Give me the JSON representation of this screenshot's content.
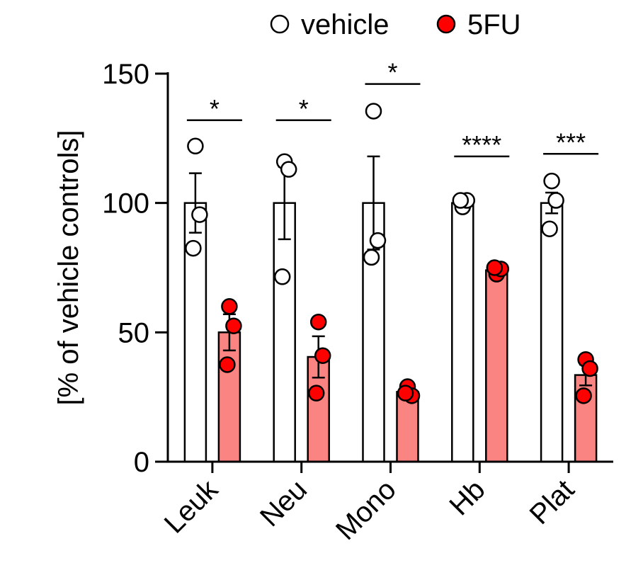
{
  "chart_data": {
    "type": "bar",
    "title": "",
    "xlabel": "",
    "ylabel": "[% of vehicle controls]",
    "ylim": [
      0,
      150
    ],
    "yticks": [
      "0",
      "50",
      "100",
      "150"
    ],
    "categories": [
      "Leuk",
      "Neu",
      "Mono",
      "Hb",
      "Plat"
    ],
    "legend_position": "top",
    "series": [
      {
        "name": "vehicle",
        "color": "#ffffff",
        "marker_fill": "#ffffff",
        "values": [
          100,
          100,
          100,
          100,
          100
        ],
        "sem": [
          11.5,
          14,
          18,
          1,
          4
        ],
        "points": [
          [
            122,
            95.5,
            82.5
          ],
          [
            116,
            113,
            71.5
          ],
          [
            135.5,
            85.5,
            79
          ],
          [
            98.5,
            101,
            101
          ],
          [
            108.5,
            101,
            90
          ]
        ]
      },
      {
        "name": "5FU",
        "color": "#f98482",
        "marker_fill": "#ff0000",
        "values": [
          50,
          40.5,
          27,
          74,
          33.5
        ],
        "sem": [
          7,
          8,
          1,
          0.5,
          4
        ],
        "points": [
          [
            60,
            52.5,
            37.5
          ],
          [
            54,
            41,
            26.5
          ],
          [
            29,
            25.5,
            26.5
          ],
          [
            72.5,
            74.5,
            75
          ],
          [
            39.5,
            36,
            25.5
          ]
        ]
      }
    ],
    "significance": [
      {
        "category": "Leuk",
        "label": "*",
        "y": 132
      },
      {
        "category": "Neu",
        "label": "*",
        "y": 132
      },
      {
        "category": "Mono",
        "label": "*",
        "y": 146
      },
      {
        "category": "Hb",
        "label": "****",
        "y": 118
      },
      {
        "category": "Plat",
        "label": "***",
        "y": 119
      }
    ]
  }
}
